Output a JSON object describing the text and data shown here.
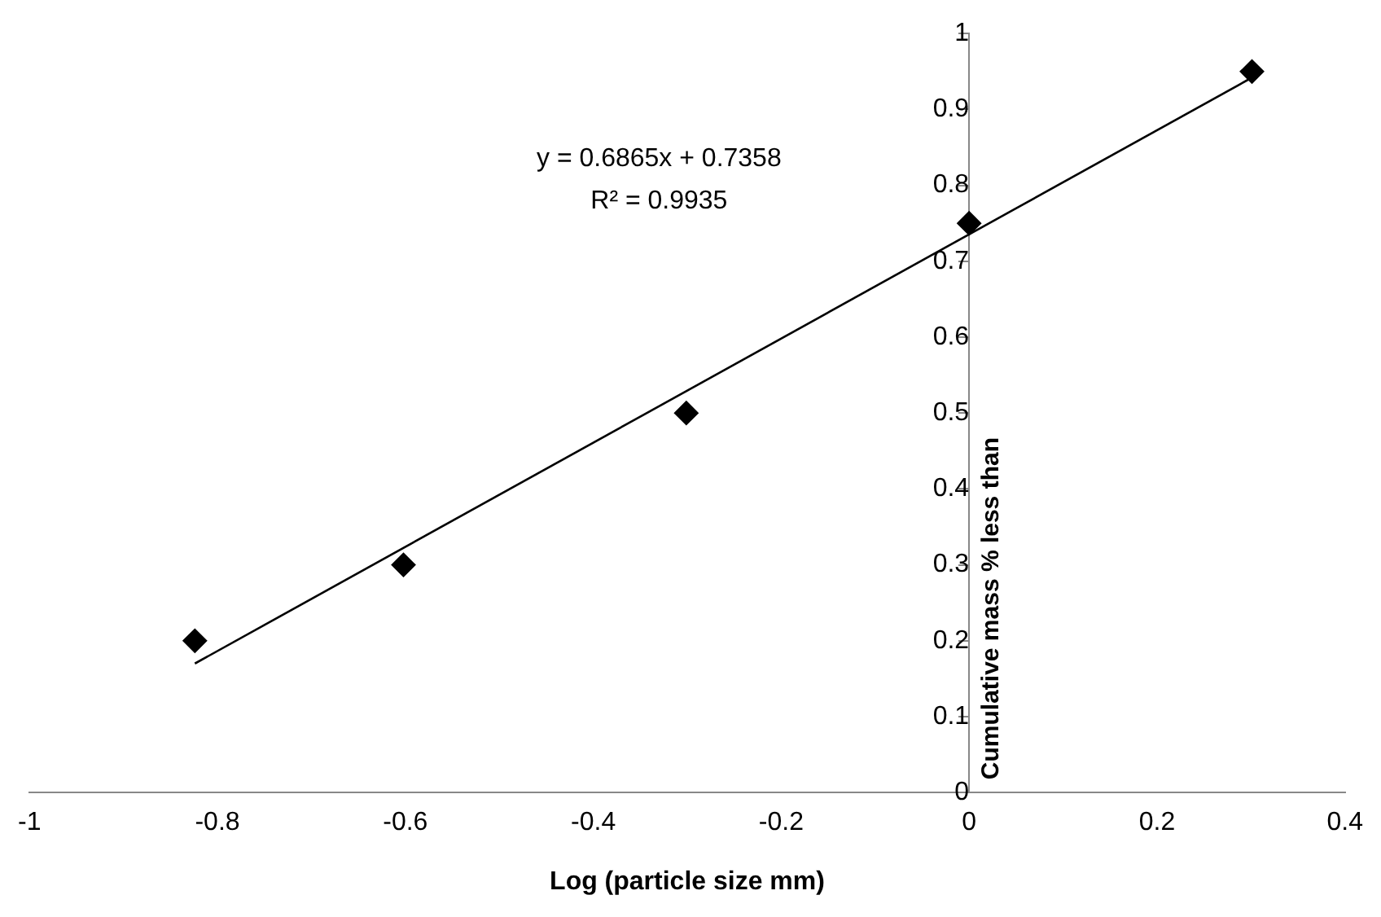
{
  "chart_data": {
    "type": "scatter",
    "xlabel": "Log (particle size mm)",
    "ylabel": "Cumulative mass % less than",
    "xlim": [
      -1,
      0.4
    ],
    "xticks": [
      -1,
      -0.8,
      -0.6,
      -0.4,
      -0.2,
      0,
      0.2,
      0.4
    ],
    "ylim": [
      0,
      1
    ],
    "yticks": [
      0,
      0.1,
      0.2,
      0.3,
      0.4,
      0.5,
      0.6,
      0.7,
      0.8,
      0.9,
      1
    ],
    "grid": false,
    "legend": false,
    "marker": "diamond",
    "annotations": [
      "y = 0.6865x + 0.7358",
      "R² = 0.9935"
    ],
    "series": [
      {
        "type": "scatter",
        "color": "#000000",
        "x": [
          -0.824,
          -0.602,
          -0.301,
          0,
          0.301
        ],
        "values": [
          0.2,
          0.3,
          0.5,
          0.75,
          0.95
        ]
      },
      {
        "type": "line",
        "color": "#000000",
        "marker": "none",
        "line_style": "solid",
        "x": [
          -0.824,
          0.301
        ],
        "values": [
          0.17,
          0.942
        ]
      }
    ]
  }
}
